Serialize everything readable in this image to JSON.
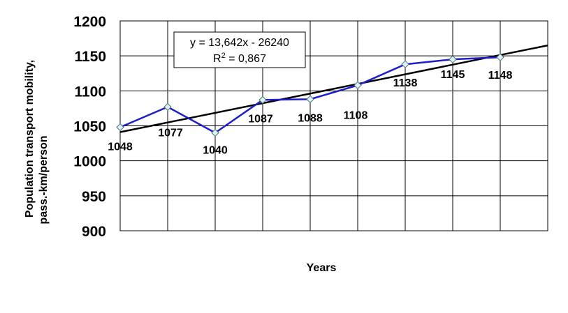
{
  "chart_data": {
    "type": "line",
    "title": "",
    "xlabel": "Years",
    "ylabel_line1": "Population transport mobility,",
    "ylabel_line2": "pass.-km/person",
    "ylim": [
      900,
      1200
    ],
    "yticks": [
      "900",
      "950",
      "1000",
      "1050",
      "1100",
      "1150",
      "1200"
    ],
    "grid": true,
    "series": [
      {
        "values": [
          1048,
          1077,
          1040,
          1087,
          1088,
          1108,
          1138,
          1145,
          1148
        ],
        "labels": [
          "1048",
          "1077",
          "1040",
          "1087",
          "1088",
          "1108",
          "1138",
          "1145",
          "1148"
        ],
        "color": "#1f1fc8",
        "marker": "diamond",
        "marker_fill": "#d9f3f5"
      }
    ],
    "trendline": {
      "type": "linear",
      "color": "#000000",
      "start_value": 1041,
      "end_value": 1165,
      "equation": "y = 13,642x - 26240",
      "r2_prefix": "R",
      "r2_sup": "2",
      "r2_suffix": " = 0,867"
    }
  }
}
